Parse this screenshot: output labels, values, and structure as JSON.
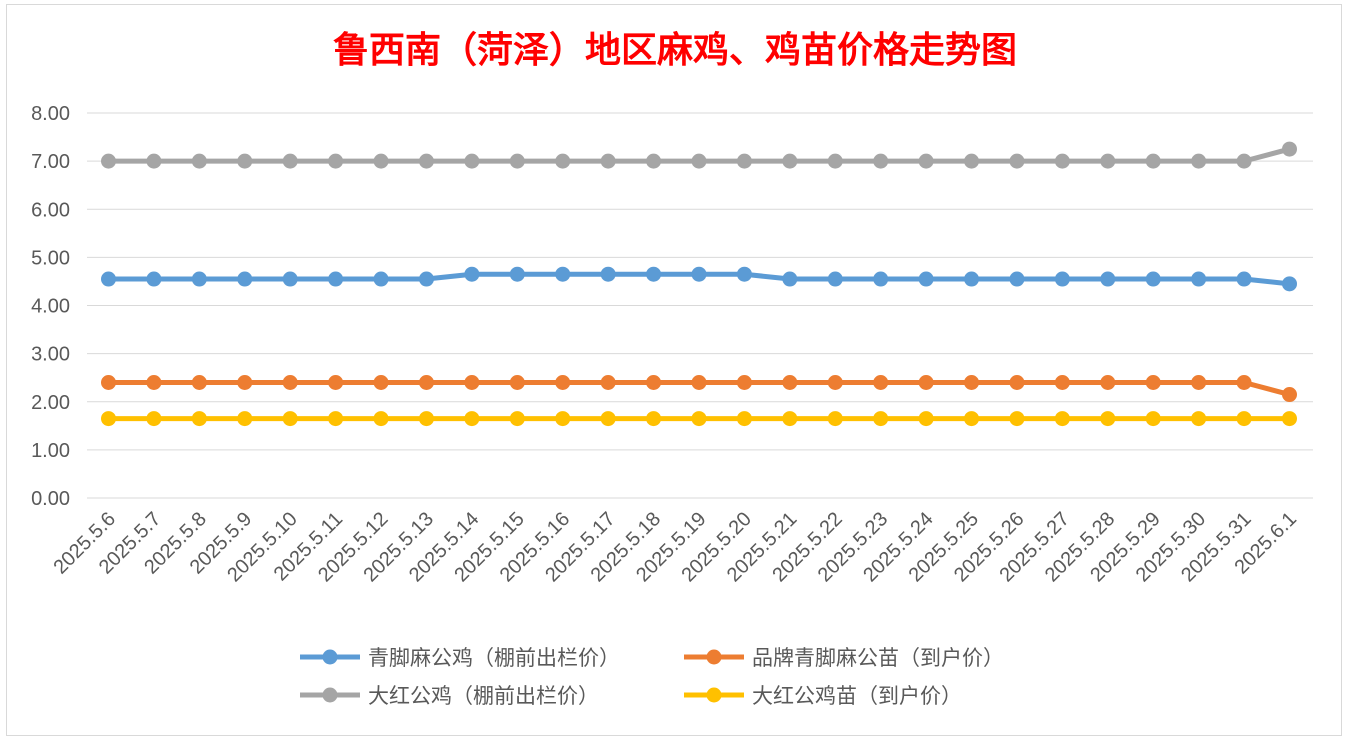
{
  "chart_data": {
    "type": "line",
    "title": "鲁西南（菏泽）地区麻鸡、鸡苗价格走势图",
    "xlabel": "",
    "ylabel": "",
    "ylim": [
      0,
      8
    ],
    "y_ticks": [
      "0.00",
      "1.00",
      "2.00",
      "3.00",
      "4.00",
      "5.00",
      "6.00",
      "7.00",
      "8.00"
    ],
    "categories": [
      "2025.5.6",
      "2025.5.7",
      "2025.5.8",
      "2025.5.9",
      "2025.5.10",
      "2025.5.11",
      "2025.5.12",
      "2025.5.13",
      "2025.5.14",
      "2025.5.15",
      "2025.5.16",
      "2025.5.17",
      "2025.5.18",
      "2025.5.19",
      "2025.5.20",
      "2025.5.21",
      "2025.5.22",
      "2025.5.23",
      "2025.5.24",
      "2025.5.25",
      "2025.5.26",
      "2025.5.27",
      "2025.5.28",
      "2025.5.29",
      "2025.5.30",
      "2025.5.31",
      "2025.6.1"
    ],
    "grid": true,
    "legend_position": "bottom",
    "series": [
      {
        "name": "青脚麻公鸡（棚前出栏价）",
        "color": "#5B9BD5",
        "values": [
          4.55,
          4.55,
          4.55,
          4.55,
          4.55,
          4.55,
          4.55,
          4.55,
          4.65,
          4.65,
          4.65,
          4.65,
          4.65,
          4.65,
          4.65,
          4.55,
          4.55,
          4.55,
          4.55,
          4.55,
          4.55,
          4.55,
          4.55,
          4.55,
          4.55,
          4.55,
          4.45
        ]
      },
      {
        "name": "品牌青脚麻公苗（到户价）",
        "color": "#ED7D31",
        "values": [
          2.4,
          2.4,
          2.4,
          2.4,
          2.4,
          2.4,
          2.4,
          2.4,
          2.4,
          2.4,
          2.4,
          2.4,
          2.4,
          2.4,
          2.4,
          2.4,
          2.4,
          2.4,
          2.4,
          2.4,
          2.4,
          2.4,
          2.4,
          2.4,
          2.4,
          2.4,
          2.15
        ]
      },
      {
        "name": "大红公鸡（棚前出栏价）",
        "color": "#A5A5A5",
        "values": [
          7.0,
          7.0,
          7.0,
          7.0,
          7.0,
          7.0,
          7.0,
          7.0,
          7.0,
          7.0,
          7.0,
          7.0,
          7.0,
          7.0,
          7.0,
          7.0,
          7.0,
          7.0,
          7.0,
          7.0,
          7.0,
          7.0,
          7.0,
          7.0,
          7.0,
          7.0,
          7.25
        ]
      },
      {
        "name": "大红公鸡苗（到户价）",
        "color": "#FFC000",
        "values": [
          1.65,
          1.65,
          1.65,
          1.65,
          1.65,
          1.65,
          1.65,
          1.65,
          1.65,
          1.65,
          1.65,
          1.65,
          1.65,
          1.65,
          1.65,
          1.65,
          1.65,
          1.65,
          1.65,
          1.65,
          1.65,
          1.65,
          1.65,
          1.65,
          1.65,
          1.65,
          1.65
        ]
      }
    ],
    "title_color": "#FF0000",
    "gridline_color": "#D9D9D9",
    "text_color": "#595959"
  }
}
